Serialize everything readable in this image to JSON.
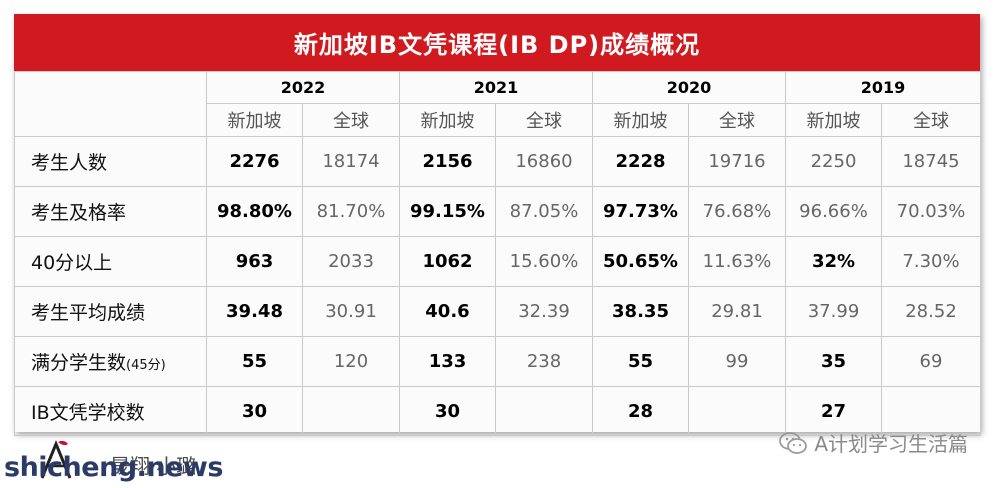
{
  "title": "新加坡IB文凭课程(IB DP)成绩概况",
  "years": [
    "2022",
    "2021",
    "2020",
    "2019"
  ],
  "regions": {
    "sg": "新加坡",
    "global": "全球"
  },
  "rows": [
    {
      "label": "考生人数",
      "label_note": "",
      "values": [
        [
          "2276",
          "18174"
        ],
        [
          "2156",
          "16860"
        ],
        [
          "2228",
          "19716"
        ],
        [
          "2250",
          "18745"
        ]
      ]
    },
    {
      "label": "考生及格率",
      "label_note": "",
      "values": [
        [
          "98.80%",
          "81.70%"
        ],
        [
          "99.15%",
          "87.05%"
        ],
        [
          "97.73%",
          "76.68%"
        ],
        [
          "96.66%",
          "70.03%"
        ]
      ]
    },
    {
      "label": "40分以上",
      "label_note": "",
      "values": [
        [
          "963",
          "2033"
        ],
        [
          "1062",
          "15.60%"
        ],
        [
          "50.65%",
          "11.63%"
        ],
        [
          "32%",
          "7.30%"
        ]
      ]
    },
    {
      "label": "考生平均成绩",
      "label_note": "",
      "values": [
        [
          "39.48",
          "30.91"
        ],
        [
          "40.6",
          "32.39"
        ],
        [
          "38.35",
          "29.81"
        ],
        [
          "37.99",
          "28.52"
        ]
      ]
    },
    {
      "label": "满分学生数",
      "label_note": "(45分)",
      "values": [
        [
          "55",
          "120"
        ],
        [
          "133",
          "238"
        ],
        [
          "55",
          "99"
        ],
        [
          "35",
          "69"
        ]
      ]
    },
    {
      "label": "IB文凭学校数",
      "label_note": "",
      "values": [
        [
          "30",
          ""
        ],
        [
          "30",
          ""
        ],
        [
          "28",
          ""
        ],
        [
          "27",
          ""
        ]
      ]
    }
  ],
  "watermark": {
    "site": "shicheng.news",
    "brand": "晟翔·小璐",
    "account": "A计划学习生活篇"
  },
  "colors": {
    "title_bg": "#d11a1f",
    "title_text": "#ffffff",
    "grid": "#c9c9c9",
    "global_text": "#666666"
  }
}
